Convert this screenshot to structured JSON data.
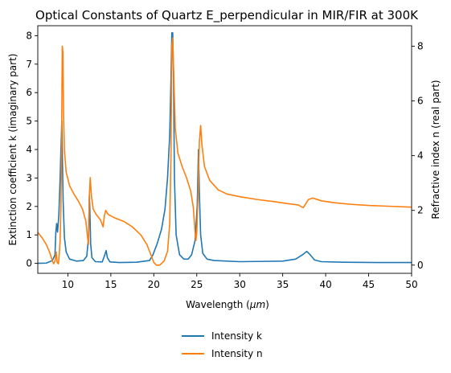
{
  "chart_data": {
    "type": "line",
    "title": "Optical Constants of Quartz E_perpendicular in MIR/FIR at 300K",
    "xlabel_prefix": "Wavelength (",
    "xlabel_symbol": "μm",
    "xlabel_suffix": ")",
    "ylabel_left": "Extinction coefficient k (imaginary part)",
    "ylabel_right": "Refractive index n (real part)",
    "xlim": [
      6.5,
      50
    ],
    "ylim_left": [
      -0.35,
      8.35
    ],
    "ylim_right": [
      -0.3,
      8.75
    ],
    "xticks": [
      10,
      15,
      20,
      25,
      30,
      35,
      40,
      45,
      50
    ],
    "yticks_left": [
      0,
      1,
      2,
      3,
      4,
      5,
      6,
      7,
      8
    ],
    "yticks_right": [
      0,
      2,
      4,
      6,
      8
    ],
    "grid": false,
    "legend_placement": "bottom-center outside",
    "series": [
      {
        "name": "Intensity k",
        "axis": "left",
        "color": "#1f77b4",
        "points": [
          [
            6.5,
            0.0
          ],
          [
            7.5,
            0.01
          ],
          [
            8.2,
            0.1
          ],
          [
            8.5,
            0.3
          ],
          [
            8.6,
            1.1
          ],
          [
            8.7,
            1.4
          ],
          [
            8.8,
            1.1
          ],
          [
            8.95,
            1.7
          ],
          [
            9.1,
            3.0
          ],
          [
            9.2,
            4.1
          ],
          [
            9.3,
            5.0
          ],
          [
            9.35,
            4.0
          ],
          [
            9.45,
            2.2
          ],
          [
            9.6,
            0.9
          ],
          [
            9.8,
            0.4
          ],
          [
            10.2,
            0.15
          ],
          [
            11.0,
            0.08
          ],
          [
            11.8,
            0.1
          ],
          [
            12.2,
            0.25
          ],
          [
            12.4,
            0.9
          ],
          [
            12.5,
            2.4
          ],
          [
            12.55,
            2.0
          ],
          [
            12.65,
            0.7
          ],
          [
            12.8,
            0.2
          ],
          [
            13.2,
            0.06
          ],
          [
            14.0,
            0.05
          ],
          [
            14.3,
            0.3
          ],
          [
            14.45,
            0.45
          ],
          [
            14.6,
            0.2
          ],
          [
            14.9,
            0.05
          ],
          [
            16.0,
            0.03
          ],
          [
            18.0,
            0.04
          ],
          [
            19.5,
            0.1
          ],
          [
            19.9,
            0.3
          ],
          [
            20.4,
            0.7
          ],
          [
            20.9,
            1.2
          ],
          [
            21.3,
            1.9
          ],
          [
            21.6,
            3.0
          ],
          [
            21.85,
            4.5
          ],
          [
            22.0,
            6.5
          ],
          [
            22.1,
            8.1
          ],
          [
            22.2,
            8.1
          ],
          [
            22.3,
            6.5
          ],
          [
            22.4,
            3.0
          ],
          [
            22.6,
            1.0
          ],
          [
            23.0,
            0.3
          ],
          [
            23.5,
            0.15
          ],
          [
            24.0,
            0.15
          ],
          [
            24.4,
            0.3
          ],
          [
            24.8,
            0.8
          ],
          [
            25.05,
            2.0
          ],
          [
            25.2,
            4.0
          ],
          [
            25.3,
            2.5
          ],
          [
            25.45,
            1.0
          ],
          [
            25.7,
            0.35
          ],
          [
            26.2,
            0.15
          ],
          [
            27.0,
            0.1
          ],
          [
            30.0,
            0.06
          ],
          [
            33.0,
            0.07
          ],
          [
            35.0,
            0.08
          ],
          [
            36.5,
            0.15
          ],
          [
            37.3,
            0.3
          ],
          [
            37.8,
            0.42
          ],
          [
            38.2,
            0.3
          ],
          [
            38.7,
            0.12
          ],
          [
            39.5,
            0.06
          ],
          [
            42.0,
            0.04
          ],
          [
            46.0,
            0.03
          ],
          [
            50.0,
            0.03
          ]
        ]
      },
      {
        "name": "Intensity n",
        "axis": "right",
        "color": "#ff7f0e",
        "points": [
          [
            6.5,
            1.2
          ],
          [
            7.0,
            1.0
          ],
          [
            7.5,
            0.75
          ],
          [
            7.9,
            0.45
          ],
          [
            8.2,
            0.15
          ],
          [
            8.35,
            0.05
          ],
          [
            8.5,
            0.15
          ],
          [
            8.65,
            0.48
          ],
          [
            8.75,
            0.1
          ],
          [
            8.9,
            0.05
          ],
          [
            9.0,
            0.4
          ],
          [
            9.1,
            0.9
          ],
          [
            9.2,
            2.2
          ],
          [
            9.28,
            5.0
          ],
          [
            9.35,
            8.0
          ],
          [
            9.42,
            7.8
          ],
          [
            9.5,
            5.5
          ],
          [
            9.6,
            4.2
          ],
          [
            9.8,
            3.4
          ],
          [
            10.2,
            2.9
          ],
          [
            10.7,
            2.6
          ],
          [
            11.2,
            2.35
          ],
          [
            11.7,
            2.05
          ],
          [
            12.1,
            1.6
          ],
          [
            12.3,
            1.0
          ],
          [
            12.4,
            0.75
          ],
          [
            12.5,
            2.5
          ],
          [
            12.6,
            3.2
          ],
          [
            12.75,
            2.5
          ],
          [
            12.95,
            2.05
          ],
          [
            13.3,
            1.85
          ],
          [
            13.8,
            1.65
          ],
          [
            14.1,
            1.4
          ],
          [
            14.25,
            1.8
          ],
          [
            14.4,
            2.0
          ],
          [
            14.7,
            1.85
          ],
          [
            15.5,
            1.72
          ],
          [
            16.5,
            1.6
          ],
          [
            17.5,
            1.4
          ],
          [
            18.5,
            1.1
          ],
          [
            19.2,
            0.75
          ],
          [
            19.7,
            0.35
          ],
          [
            20.0,
            0.1
          ],
          [
            20.3,
            0.0
          ],
          [
            20.7,
            0.0
          ],
          [
            21.2,
            0.15
          ],
          [
            21.6,
            0.5
          ],
          [
            21.85,
            1.5
          ],
          [
            22.0,
            4.0
          ],
          [
            22.1,
            8.0
          ],
          [
            22.2,
            8.3
          ],
          [
            22.35,
            6.7
          ],
          [
            22.5,
            5.0
          ],
          [
            22.8,
            4.1
          ],
          [
            23.3,
            3.6
          ],
          [
            23.8,
            3.2
          ],
          [
            24.3,
            2.7
          ],
          [
            24.6,
            2.1
          ],
          [
            24.8,
            1.2
          ],
          [
            24.9,
            0.9
          ],
          [
            25.0,
            1.2
          ],
          [
            25.15,
            2.5
          ],
          [
            25.3,
            4.5
          ],
          [
            25.45,
            5.1
          ],
          [
            25.6,
            4.4
          ],
          [
            25.9,
            3.6
          ],
          [
            26.5,
            3.1
          ],
          [
            27.5,
            2.75
          ],
          [
            28.5,
            2.6
          ],
          [
            30.0,
            2.5
          ],
          [
            32.0,
            2.4
          ],
          [
            34.0,
            2.32
          ],
          [
            35.5,
            2.25
          ],
          [
            36.8,
            2.2
          ],
          [
            37.4,
            2.1
          ],
          [
            37.7,
            2.25
          ],
          [
            38.0,
            2.4
          ],
          [
            38.5,
            2.45
          ],
          [
            39.5,
            2.35
          ],
          [
            41.0,
            2.28
          ],
          [
            43.0,
            2.22
          ],
          [
            45.0,
            2.18
          ],
          [
            47.5,
            2.15
          ],
          [
            50.0,
            2.12
          ]
        ]
      }
    ]
  }
}
